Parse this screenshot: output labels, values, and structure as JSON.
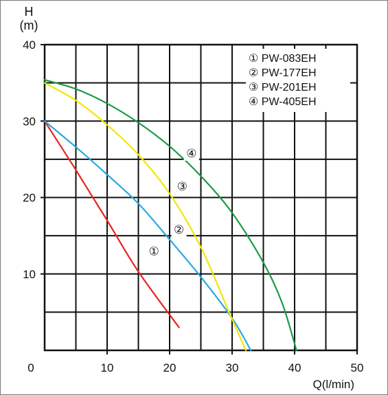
{
  "chart_data": {
    "type": "line",
    "title": "",
    "ylabel_line1": "H",
    "ylabel_line2": "(m)",
    "xlabel": "Q(l/min)",
    "xlim": [
      0,
      50
    ],
    "ylim": [
      0,
      40
    ],
    "xticks": [
      "0",
      "10",
      "20",
      "30",
      "40",
      "50"
    ],
    "yticks": [
      "10",
      "20",
      "30",
      "40"
    ],
    "grid": true,
    "legend_position": "top-right",
    "series": [
      {
        "name": "① PW-083EH",
        "marker": "①",
        "color": "#e8231f",
        "x": [
          0,
          5,
          10,
          15,
          21.5
        ],
        "y": [
          30,
          23.6,
          17.0,
          10.3,
          3.0
        ]
      },
      {
        "name": "② PW-177EH",
        "marker": "②",
        "color": "#27a9e1",
        "x": [
          0,
          5,
          10,
          15,
          20,
          25,
          30,
          33
        ],
        "y": [
          30,
          26.6,
          23.0,
          19.2,
          14.5,
          9.6,
          4.2,
          0
        ]
      },
      {
        "name": "③ PW-201EH",
        "marker": "③",
        "color": "#f2e600",
        "x": [
          0,
          5,
          10,
          15,
          20,
          25,
          29.5,
          32.2
        ],
        "y": [
          35,
          32.7,
          29.5,
          25.6,
          20.5,
          13.5,
          5.0,
          0
        ]
      },
      {
        "name": "④ PW-405EH",
        "marker": "④",
        "color": "#1a9a48",
        "x": [
          0,
          5,
          10,
          15,
          20,
          25,
          30,
          35,
          38,
          40.3
        ],
        "y": [
          35.4,
          34.2,
          32.3,
          29.8,
          26.7,
          22.8,
          18.0,
          11.5,
          6.2,
          0
        ]
      }
    ],
    "curve_labels": [
      {
        "series": 0,
        "text": "①",
        "x": 17.5,
        "y": 13.0
      },
      {
        "series": 1,
        "text": "②",
        "x": 21.5,
        "y": 15.8
      },
      {
        "series": 2,
        "text": "③",
        "x": 22,
        "y": 21.5
      },
      {
        "series": 3,
        "text": "④",
        "x": 23.5,
        "y": 25.8
      }
    ]
  }
}
